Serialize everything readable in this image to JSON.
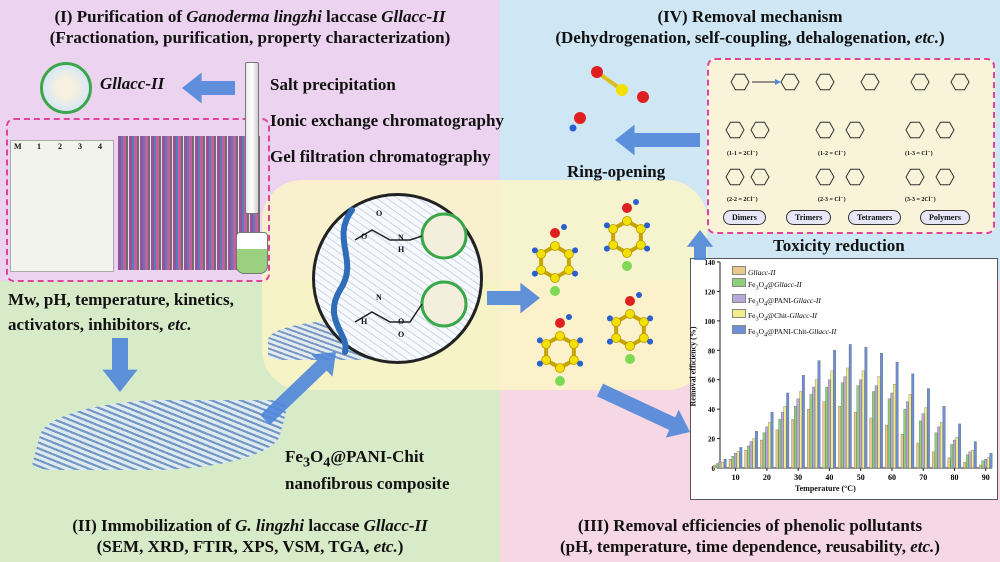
{
  "quadrants": {
    "q1": {
      "title_prefix": "(I) Purification of ",
      "title_species": "Ganoderma lingzhi",
      "title_mid": " laccase ",
      "title_enzyme": "Gllacc-II",
      "subtitle": "(Fractionation, purification, property characterization)",
      "enzyme_label": "Gllacc-II",
      "steps": [
        "Salt precipitation",
        "Ionic exchange chromatography",
        "Gel filtration chromatography"
      ],
      "gel_lane_labels": [
        "M",
        "1",
        "2",
        "3",
        "4"
      ],
      "properties_line1": "Mw, pH, temperature, kinetics,",
      "properties_line2_prefix": "activators, inhibitors, ",
      "properties_line2_etc": "etc."
    },
    "q2": {
      "title_prefix": "(II) Immobilization of ",
      "title_species": "G. lingzhi",
      "title_mid": " laccase ",
      "title_enzyme": "Gllacc-II",
      "subtitle_prefix": "(SEM, XRD, FTIR, XPS, VSM, TGA, ",
      "subtitle_etc": "etc.",
      "subtitle_suffix": ")",
      "composite_line1_a": "Fe",
      "composite_line1_sub3": "3",
      "composite_line1_b": "O",
      "composite_line1_sub4": "4",
      "composite_line1_c": "@PANI-Chit",
      "composite_line2": "nanofibrous composite",
      "molecule_atoms": [
        "O",
        "O",
        "N",
        "H",
        "N",
        "H",
        "O",
        "O"
      ]
    },
    "q3": {
      "title": "(III) Removal efficiencies of phenolic pollutants",
      "subtitle_prefix": "(pH, temperature, time dependence, reusability, ",
      "subtitle_etc": "etc.",
      "subtitle_suffix": ")"
    },
    "q4": {
      "title": "(IV) Removal mechanism",
      "subtitle_prefix": "(Dehydrogenation, self-coupling, dehalogenation, ",
      "subtitle_etc": "etc.",
      "subtitle_suffix": ")",
      "ring_opening": "Ring-opening",
      "toxicity": "Toxicity reduction",
      "products": [
        "Dimers",
        "Trimers",
        "Tetramers",
        "Polymers"
      ],
      "scheme_labels": [
        "(1-1 = 2Cl⁻)",
        "(1-2 = Cl⁻)",
        "(1-3 = Cl⁻)",
        "(2-2 = 2Cl⁻)",
        "(2-3 = Cl⁻)",
        "(3-3 = 2Cl⁻)"
      ]
    }
  },
  "colors": {
    "q1_bg": "#ecd3ef",
    "q2_bg": "#d7ebc9",
    "q3_bg": "#f6d7e4",
    "q4_bg": "#cfe7f4",
    "center_bg": "#fbf6c7",
    "arrow": "#4f86d9",
    "dash": "#e0449a"
  },
  "chart_data": {
    "type": "bar",
    "xlabel": "Temperature (°C)",
    "ylabel": "Removal efficiency (%)",
    "xlim": [
      5,
      92
    ],
    "ylim": [
      0,
      140
    ],
    "xticks": [
      10,
      20,
      30,
      40,
      50,
      60,
      70,
      80,
      90
    ],
    "yticks": [
      0,
      20,
      40,
      60,
      80,
      100,
      120,
      140
    ],
    "legend_position": "top-left",
    "x": [
      5,
      10,
      15,
      20,
      25,
      30,
      35,
      40,
      45,
      50,
      55,
      60,
      65,
      70,
      75,
      80,
      85,
      90
    ],
    "series": [
      {
        "name": "Gllacc-II",
        "color": "#e8c98a",
        "values": [
          2,
          6,
          12,
          19,
          26,
          33,
          40,
          45,
          42,
          38,
          34,
          29,
          23,
          17,
          11,
          7,
          4,
          2
        ]
      },
      {
        "name": "Fe3O4@Gllacc-II",
        "color": "#8fcf7e",
        "values": [
          3,
          8,
          15,
          24,
          33,
          42,
          50,
          55,
          58,
          56,
          52,
          47,
          40,
          32,
          24,
          16,
          9,
          5
        ]
      },
      {
        "name": "Fe3O4@PANI-Gllacc-II",
        "color": "#b9a9d9",
        "values": [
          4,
          10,
          18,
          28,
          38,
          47,
          55,
          60,
          62,
          60,
          56,
          51,
          45,
          37,
          28,
          19,
          11,
          6
        ]
      },
      {
        "name": "Fe3O4@Chit-Gllacc-II",
        "color": "#f1ee8a",
        "values": [
          4,
          11,
          20,
          31,
          42,
          52,
          60,
          66,
          68,
          66,
          62,
          57,
          50,
          41,
          31,
          21,
          12,
          7
        ]
      },
      {
        "name": "Fe3O4@PANI-Chit-Gllacc-II",
        "color": "#6d8fd6",
        "values": [
          6,
          14,
          25,
          38,
          51,
          63,
          73,
          80,
          84,
          82,
          78,
          72,
          64,
          54,
          42,
          30,
          18,
          10
        ]
      }
    ]
  }
}
